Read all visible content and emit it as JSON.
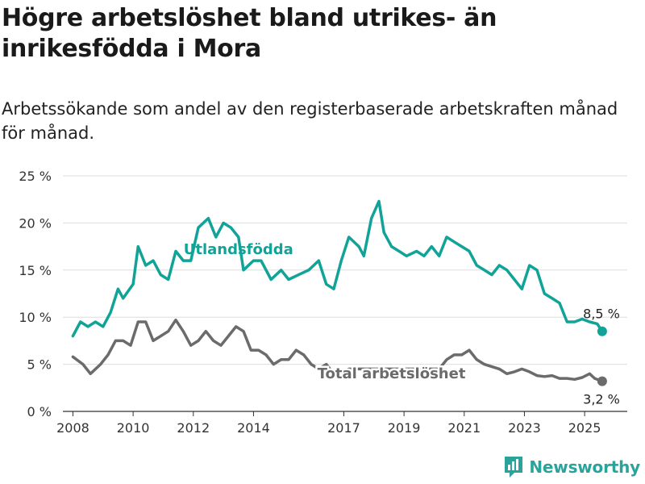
{
  "title": "Högre arbetslöshet bland utrikes- än inrikesfödda i Mora",
  "subtitle": "Arbetssökande som andel av den registerbaserade arbetskraften månad för månad.",
  "brand": "Newsworthy",
  "colors": {
    "foreign": "#11a398",
    "total": "#6b6b6b",
    "brand": "#2aa39a",
    "grid": "#dddddd"
  },
  "chart_data": {
    "type": "line",
    "x_ticks": [
      "2008",
      "2010",
      "2012",
      "2014",
      "2017",
      "2019",
      "2021",
      "2023",
      "2025"
    ],
    "y_ticks": [
      "0 %",
      "5 %",
      "10 %",
      "15 %",
      "20 %",
      "25 %"
    ],
    "ylim": [
      0,
      25
    ],
    "xlim": [
      "2007-09",
      "2026-06"
    ],
    "grid": true,
    "series": [
      {
        "name": "Utlandsfödda",
        "end_label": "8,5 %",
        "points": [
          [
            "2008-01",
            8.0
          ],
          [
            "2008-04",
            9.5
          ],
          [
            "2008-07",
            9.0
          ],
          [
            "2008-10",
            9.5
          ],
          [
            "2009-01",
            9.0
          ],
          [
            "2009-04",
            10.5
          ],
          [
            "2009-07",
            13.0
          ],
          [
            "2009-09",
            12.0
          ],
          [
            "2010-01",
            13.5
          ],
          [
            "2010-03",
            17.5
          ],
          [
            "2010-06",
            15.5
          ],
          [
            "2010-09",
            16.0
          ],
          [
            "2010-12",
            14.5
          ],
          [
            "2011-03",
            14.0
          ],
          [
            "2011-06",
            17.0
          ],
          [
            "2011-09",
            16.0
          ],
          [
            "2011-12",
            16.0
          ],
          [
            "2012-03",
            19.5
          ],
          [
            "2012-07",
            20.5
          ],
          [
            "2012-10",
            18.5
          ],
          [
            "2013-01",
            20.0
          ],
          [
            "2013-04",
            19.5
          ],
          [
            "2013-07",
            18.5
          ],
          [
            "2013-09",
            15.0
          ],
          [
            "2014-01",
            16.0
          ],
          [
            "2014-04",
            16.0
          ],
          [
            "2014-08",
            14.0
          ],
          [
            "2014-12",
            15.0
          ],
          [
            "2015-03",
            14.0
          ],
          [
            "2015-07",
            14.5
          ],
          [
            "2015-11",
            15.0
          ],
          [
            "2016-03",
            16.0
          ],
          [
            "2016-06",
            13.5
          ],
          [
            "2016-09",
            13.0
          ],
          [
            "2016-12",
            16.0
          ],
          [
            "2017-03",
            18.5
          ],
          [
            "2017-07",
            17.5
          ],
          [
            "2017-09",
            16.5
          ],
          [
            "2017-12",
            20.5
          ],
          [
            "2018-03",
            22.3
          ],
          [
            "2018-05",
            19.0
          ],
          [
            "2018-08",
            17.5
          ],
          [
            "2018-11",
            17.0
          ],
          [
            "2019-02",
            16.5
          ],
          [
            "2019-06",
            17.0
          ],
          [
            "2019-09",
            16.5
          ],
          [
            "2019-12",
            17.5
          ],
          [
            "2020-03",
            16.5
          ],
          [
            "2020-06",
            18.5
          ],
          [
            "2020-09",
            18.0
          ],
          [
            "2020-12",
            17.5
          ],
          [
            "2021-03",
            17.0
          ],
          [
            "2021-06",
            15.5
          ],
          [
            "2021-09",
            15.0
          ],
          [
            "2021-12",
            14.5
          ],
          [
            "2022-03",
            15.5
          ],
          [
            "2022-06",
            15.0
          ],
          [
            "2022-09",
            14.0
          ],
          [
            "2022-12",
            13.0
          ],
          [
            "2023-03",
            15.5
          ],
          [
            "2023-06",
            15.0
          ],
          [
            "2023-09",
            12.5
          ],
          [
            "2023-12",
            12.0
          ],
          [
            "2024-03",
            11.5
          ],
          [
            "2024-06",
            9.5
          ],
          [
            "2024-09",
            9.5
          ],
          [
            "2024-12",
            9.8
          ],
          [
            "2025-03",
            9.5
          ],
          [
            "2025-06",
            9.3
          ],
          [
            "2025-08",
            8.5
          ]
        ]
      },
      {
        "name": "Total arbetslöshet",
        "end_label": "3,2 %",
        "points": [
          [
            "2008-01",
            5.8
          ],
          [
            "2008-05",
            5.0
          ],
          [
            "2008-08",
            4.0
          ],
          [
            "2008-12",
            5.0
          ],
          [
            "2009-03",
            6.0
          ],
          [
            "2009-06",
            7.5
          ],
          [
            "2009-09",
            7.5
          ],
          [
            "2009-12",
            7.0
          ],
          [
            "2010-03",
            9.5
          ],
          [
            "2010-06",
            9.5
          ],
          [
            "2010-09",
            7.5
          ],
          [
            "2010-12",
            8.0
          ],
          [
            "2011-03",
            8.5
          ],
          [
            "2011-06",
            9.7
          ],
          [
            "2011-09",
            8.5
          ],
          [
            "2011-12",
            7.0
          ],
          [
            "2012-03",
            7.5
          ],
          [
            "2012-06",
            8.5
          ],
          [
            "2012-09",
            7.5
          ],
          [
            "2012-12",
            7.0
          ],
          [
            "2013-03",
            8.0
          ],
          [
            "2013-06",
            9.0
          ],
          [
            "2013-09",
            8.5
          ],
          [
            "2013-12",
            6.5
          ],
          [
            "2014-03",
            6.5
          ],
          [
            "2014-06",
            6.0
          ],
          [
            "2014-09",
            5.0
          ],
          [
            "2014-12",
            5.5
          ],
          [
            "2015-03",
            5.5
          ],
          [
            "2015-06",
            6.5
          ],
          [
            "2015-09",
            6.0
          ],
          [
            "2015-12",
            5.0
          ],
          [
            "2016-03",
            4.5
          ],
          [
            "2016-06",
            5.0
          ],
          [
            "2016-09",
            4.0
          ],
          [
            "2016-12",
            4.2
          ],
          [
            "2017-03",
            4.5
          ],
          [
            "2020-03",
            4.5
          ],
          [
            "2020-06",
            5.5
          ],
          [
            "2020-09",
            6.0
          ],
          [
            "2020-12",
            6.0
          ],
          [
            "2021-03",
            6.5
          ],
          [
            "2021-06",
            5.5
          ],
          [
            "2021-09",
            5.0
          ],
          [
            "2022-03",
            4.5
          ],
          [
            "2022-06",
            4.0
          ],
          [
            "2022-09",
            4.2
          ],
          [
            "2022-12",
            4.5
          ],
          [
            "2023-03",
            4.2
          ],
          [
            "2023-06",
            3.8
          ],
          [
            "2023-09",
            3.7
          ],
          [
            "2023-12",
            3.8
          ],
          [
            "2024-03",
            3.5
          ],
          [
            "2024-06",
            3.5
          ],
          [
            "2024-09",
            3.4
          ],
          [
            "2024-12",
            3.6
          ],
          [
            "2025-03",
            4.0
          ],
          [
            "2025-05",
            3.5
          ],
          [
            "2025-08",
            3.2
          ]
        ]
      }
    ]
  }
}
